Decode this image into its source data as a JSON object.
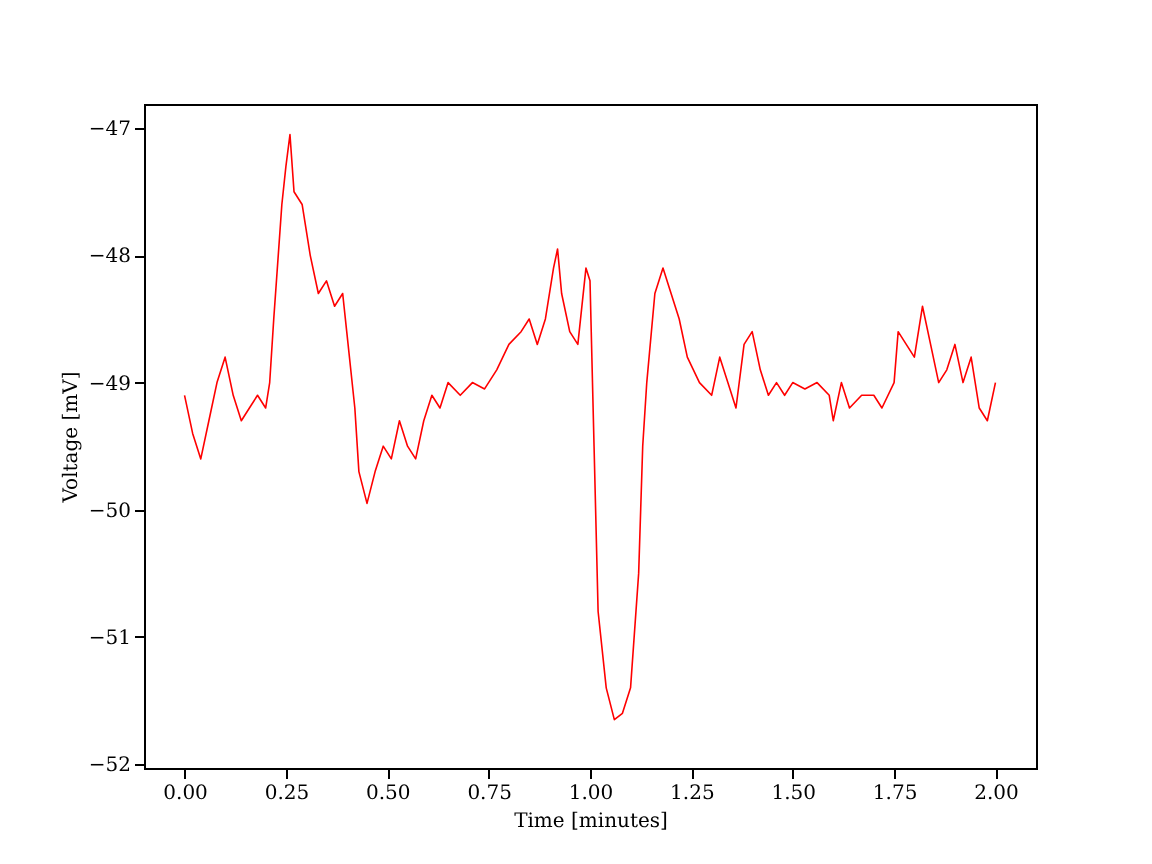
{
  "chart_data": {
    "type": "line",
    "xlabel": "Time [minutes]",
    "ylabel": "Voltage [mV]",
    "xlim": [
      -0.1,
      2.1
    ],
    "ylim": [
      -52.03,
      -46.81
    ],
    "xticks": [
      {
        "value": 0,
        "label": "0.00"
      },
      {
        "value": 0.25,
        "label": "0.25"
      },
      {
        "value": 0.5,
        "label": "0.50"
      },
      {
        "value": 0.75,
        "label": "0.75"
      },
      {
        "value": 1,
        "label": "1.00"
      },
      {
        "value": 1.25,
        "label": "1.25"
      },
      {
        "value": 1.5,
        "label": "1.50"
      },
      {
        "value": 1.75,
        "label": "1.75"
      },
      {
        "value": 2,
        "label": "2.00"
      }
    ],
    "yticks": [
      {
        "value": -52,
        "label": "−52"
      },
      {
        "value": -51,
        "label": "−51"
      },
      {
        "value": -50,
        "label": "−50"
      },
      {
        "value": -49,
        "label": "−49"
      },
      {
        "value": -48,
        "label": "−48"
      },
      {
        "value": -47,
        "label": "−47"
      }
    ],
    "grid": false,
    "marker": "none",
    "line_style": "solid",
    "x": [
      0.0,
      0.02,
      0.04,
      0.06,
      0.08,
      0.1,
      0.12,
      0.14,
      0.16,
      0.18,
      0.2,
      0.21,
      0.22,
      0.24,
      0.25,
      0.26,
      0.27,
      0.29,
      0.31,
      0.33,
      0.35,
      0.37,
      0.39,
      0.4,
      0.42,
      0.43,
      0.45,
      0.47,
      0.49,
      0.51,
      0.53,
      0.55,
      0.57,
      0.59,
      0.61,
      0.63,
      0.65,
      0.68,
      0.71,
      0.74,
      0.77,
      0.8,
      0.83,
      0.85,
      0.87,
      0.89,
      0.91,
      0.92,
      0.93,
      0.95,
      0.97,
      0.99,
      1.0,
      1.01,
      1.02,
      1.04,
      1.06,
      1.08,
      1.1,
      1.12,
      1.13,
      1.14,
      1.16,
      1.18,
      1.2,
      1.22,
      1.24,
      1.27,
      1.3,
      1.32,
      1.34,
      1.36,
      1.38,
      1.4,
      1.42,
      1.44,
      1.46,
      1.48,
      1.5,
      1.53,
      1.56,
      1.59,
      1.6,
      1.62,
      1.64,
      1.67,
      1.7,
      1.72,
      1.75,
      1.76,
      1.78,
      1.8,
      1.82,
      1.84,
      1.86,
      1.88,
      1.9,
      1.92,
      1.94,
      1.96,
      1.98,
      2.0
    ],
    "series": [
      {
        "color": "#ff0000",
        "values": [
          -49.1,
          -49.4,
          -49.6,
          -49.3,
          -49.0,
          -48.8,
          -49.1,
          -49.3,
          -49.2,
          -49.1,
          -49.2,
          -49.0,
          -48.5,
          -47.6,
          -47.3,
          -47.05,
          -47.5,
          -47.6,
          -48.0,
          -48.3,
          -48.2,
          -48.4,
          -48.3,
          -48.6,
          -49.2,
          -49.7,
          -49.95,
          -49.7,
          -49.5,
          -49.6,
          -49.3,
          -49.5,
          -49.6,
          -49.3,
          -49.1,
          -49.2,
          -49.0,
          -49.1,
          -49.0,
          -49.05,
          -48.9,
          -48.7,
          -48.6,
          -48.5,
          -48.7,
          -48.5,
          -48.1,
          -47.95,
          -48.3,
          -48.6,
          -48.7,
          -48.1,
          -48.2,
          -49.5,
          -50.8,
          -51.4,
          -51.65,
          -51.6,
          -51.4,
          -50.5,
          -49.5,
          -49.0,
          -48.3,
          -48.1,
          -48.3,
          -48.5,
          -48.8,
          -49.0,
          -49.1,
          -48.8,
          -49.0,
          -49.2,
          -48.7,
          -48.6,
          -48.9,
          -49.1,
          -49.0,
          -49.1,
          -49.0,
          -49.05,
          -49.0,
          -49.1,
          -49.3,
          -49.0,
          -49.2,
          -49.1,
          -49.1,
          -49.2,
          -49.0,
          -48.6,
          -48.7,
          -48.8,
          -48.4,
          -48.7,
          -49.0,
          -48.9,
          -48.7,
          -49.0,
          -48.8,
          -49.2,
          -49.3,
          -49.0
        ]
      }
    ]
  }
}
